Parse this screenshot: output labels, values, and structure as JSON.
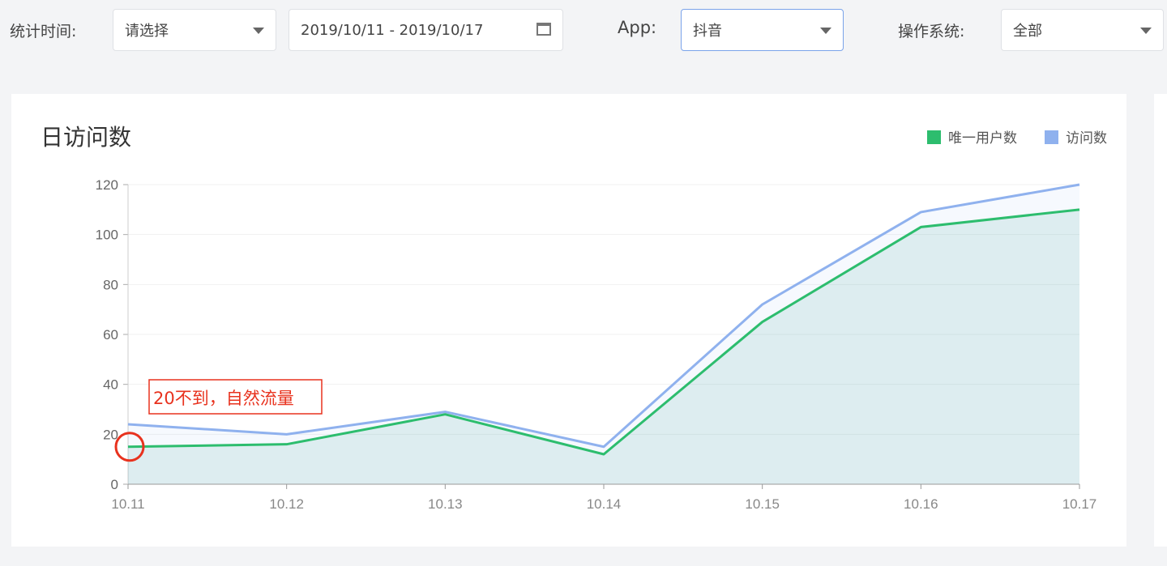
{
  "filters": {
    "time_label": "统计时间:",
    "time_select": "请选择",
    "date_range": "2019/10/11 - 2019/10/17",
    "app_label": "App:",
    "app_select": "抖音",
    "os_label": "操作系统:",
    "os_select": "全部"
  },
  "chart_data": {
    "type": "area",
    "title": "日访问数",
    "categories": [
      "10.11",
      "10.12",
      "10.13",
      "10.14",
      "10.15",
      "10.16",
      "10.17"
    ],
    "series": [
      {
        "name": "唯一用户数",
        "color": "#2dbd6e",
        "values": [
          15,
          16,
          28,
          12,
          65,
          103,
          110
        ]
      },
      {
        "name": "访问数",
        "color": "#8fb1ee",
        "values": [
          24,
          20,
          29,
          15,
          72,
          109,
          120
        ]
      }
    ],
    "ylim": [
      0,
      120
    ],
    "yticks": [
      "0",
      "20",
      "40",
      "60",
      "80",
      "100",
      "120"
    ],
    "grid": true,
    "legend": "top-right",
    "annotation": {
      "text": "20不到，自然流量",
      "color": "#e8321e",
      "x": "10.11",
      "y": 15
    }
  }
}
